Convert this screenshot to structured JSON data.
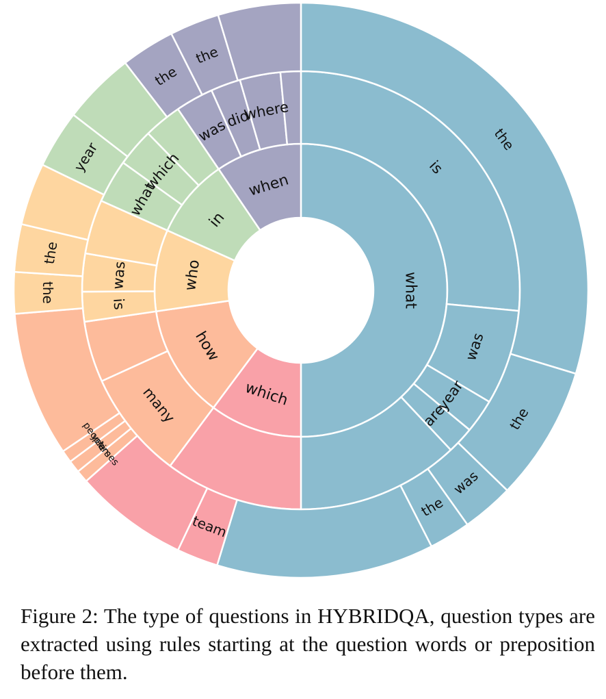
{
  "chart_data": {
    "type": "sunburst",
    "colors": {
      "what": "#8bbccf",
      "which": "#f9a1a8",
      "how": "#fdbb9b",
      "who": "#fed6a0",
      "in": "#bfdcb8",
      "when": "#a4a4c1"
    },
    "rings": [
      {
        "level": 1,
        "segments": [
          {
            "label": "what",
            "value": 50.0,
            "color_key": "what"
          },
          {
            "label": "which",
            "value": 10.2,
            "color_key": "which"
          },
          {
            "label": "how",
            "value": 12.5,
            "color_key": "how"
          },
          {
            "label": "who",
            "value": 9.0,
            "color_key": "who"
          },
          {
            "label": "in",
            "value": 8.8,
            "color_key": "in"
          },
          {
            "label": "when",
            "value": 9.5,
            "color_key": "when"
          }
        ]
      },
      {
        "level": 2,
        "segments": [
          {
            "label": "is",
            "value": 26.5,
            "color_key": "what"
          },
          {
            "label": "was",
            "value": 7.0,
            "color_key": "what"
          },
          {
            "label": "year",
            "value": 2.5,
            "color_key": "what"
          },
          {
            "label": "are",
            "value": 2.0,
            "color_key": "what"
          },
          {
            "label": "",
            "value": 12.0,
            "color_key": "what"
          },
          {
            "label": "",
            "value": 10.2,
            "color_key": "which"
          },
          {
            "label": "many",
            "value": 8.0,
            "color_key": "how"
          },
          {
            "label": "",
            "value": 4.5,
            "color_key": "how"
          },
          {
            "label": "is",
            "value": 2.2,
            "color_key": "who"
          },
          {
            "label": "was",
            "value": 2.8,
            "color_key": "who"
          },
          {
            "label": "",
            "value": 4.0,
            "color_key": "who"
          },
          {
            "label": "what",
            "value": 3.2,
            "color_key": "in"
          },
          {
            "label": "which",
            "value": 2.8,
            "color_key": "in"
          },
          {
            "label": "",
            "value": 2.8,
            "color_key": "in"
          },
          {
            "label": "was",
            "value": 2.8,
            "color_key": "when"
          },
          {
            "label": "did",
            "value": 2.2,
            "color_key": "when"
          },
          {
            "label": "where",
            "value": 3.0,
            "color_key": "when"
          },
          {
            "label": "",
            "value": 1.5,
            "color_key": "when"
          }
        ]
      },
      {
        "level": 3,
        "segments": [
          {
            "label": "the",
            "value": 25.5,
            "color_key": "what"
          },
          {
            "label": "the",
            "value": 6.5,
            "color_key": "what"
          },
          {
            "label": "was",
            "value": 2.5,
            "color_key": "what"
          },
          {
            "label": "the",
            "value": 2.0,
            "color_key": "what"
          },
          {
            "label": "",
            "value": 10.5,
            "color_key": "what"
          },
          {
            "label": "team",
            "value": 2.0,
            "color_key": "which"
          },
          {
            "label": "",
            "value": 5.5,
            "color_key": "which"
          },
          {
            "label": "times",
            "value": 0.6,
            "color_key": "how"
          },
          {
            "label": "years",
            "value": 0.6,
            "color_key": "how"
          },
          {
            "label": "people",
            "value": 0.6,
            "color_key": "how"
          },
          {
            "label": "",
            "value": 7.0,
            "color_key": "how"
          },
          {
            "label": "the",
            "value": 2.0,
            "color_key": "who"
          },
          {
            "label": "the",
            "value": 2.3,
            "color_key": "who"
          },
          {
            "label": "",
            "value": 3.0,
            "color_key": "who"
          },
          {
            "label": "year",
            "value": 2.8,
            "color_key": "in"
          },
          {
            "label": "",
            "value": 3.5,
            "color_key": "in"
          },
          {
            "label": "the",
            "value": 2.6,
            "color_key": "when"
          },
          {
            "label": "the",
            "value": 2.4,
            "color_key": "when"
          },
          {
            "label": "",
            "value": 4.0,
            "color_key": "when"
          }
        ]
      }
    ]
  },
  "caption": {
    "prefix": "Figure 2:  The type of questions in ",
    "dataset_h": "H",
    "dataset_ybrid": "YBRID",
    "dataset_qa": "QA",
    "suffix": ", question types are extracted using rules starting at the question words or preposition before them."
  }
}
